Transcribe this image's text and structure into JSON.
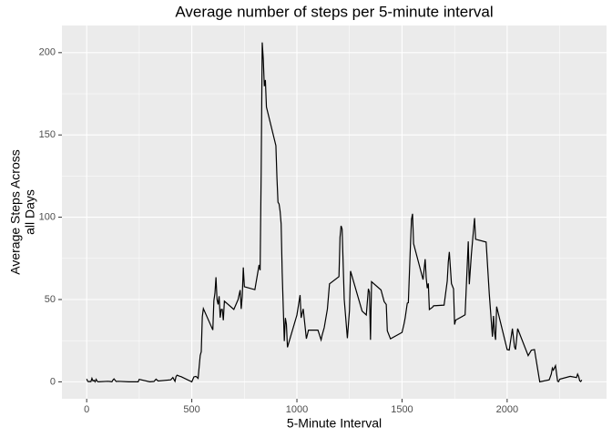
{
  "chart_data": {
    "type": "line",
    "title": "Average number of steps per 5-minute interval",
    "x_label": "5-Minute Interval",
    "y_label": [
      "Average Steps Across",
      "all Days"
    ],
    "color": "#000000",
    "grid": true,
    "xlim": [
      -117.75,
      2472.75
    ],
    "xticks": [
      0,
      500,
      1000,
      1500,
      2000
    ],
    "x_minor_grid": [
      250,
      750,
      1250,
      1750,
      2250
    ],
    "ylim": [
      -10.3,
      216.5
    ],
    "yticks": [
      0,
      50,
      100,
      150,
      200
    ],
    "y_minor_grid": [
      25,
      75,
      125,
      175
    ],
    "x": [
      0,
      5,
      10,
      15,
      20,
      25,
      30,
      35,
      40,
      45,
      50,
      55,
      100,
      110,
      120,
      125,
      130,
      140,
      150,
      200,
      215,
      230,
      245,
      250,
      300,
      320,
      330,
      340,
      400,
      410,
      420,
      425,
      430,
      440,
      450,
      500,
      510,
      520,
      530,
      540,
      545,
      550,
      555,
      600,
      605,
      610,
      615,
      620,
      625,
      630,
      635,
      640,
      645,
      650,
      655,
      700,
      720,
      730,
      735,
      740,
      745,
      750,
      800,
      820,
      825,
      830,
      835,
      840,
      845,
      850,
      855,
      900,
      905,
      910,
      915,
      920,
      925,
      930,
      935,
      940,
      945,
      950,
      955,
      1000,
      1015,
      1020,
      1030,
      1045,
      1055,
      1100,
      1115,
      1120,
      1130,
      1145,
      1155,
      1200,
      1205,
      1210,
      1215,
      1225,
      1240,
      1250,
      1255,
      1310,
      1330,
      1340,
      1345,
      1350,
      1355,
      1400,
      1415,
      1425,
      1430,
      1445,
      1500,
      1510,
      1515,
      1525,
      1530,
      1540,
      1545,
      1550,
      1555,
      1600,
      1610,
      1615,
      1620,
      1625,
      1630,
      1645,
      1650,
      1700,
      1715,
      1720,
      1725,
      1735,
      1745,
      1750,
      1755,
      1800,
      1815,
      1820,
      1830,
      1845,
      1850,
      1900,
      1915,
      1930,
      1935,
      1940,
      1945,
      1950,
      2000,
      2010,
      2025,
      2035,
      2040,
      2050,
      2100,
      2115,
      2130,
      2145,
      2155,
      2200,
      2210,
      2215,
      2220,
      2230,
      2240,
      2245,
      2250,
      2300,
      2330,
      2335,
      2340,
      2345,
      2350,
      2355
    ],
    "series": [
      {
        "name": "steps",
        "color": "#000000",
        "values": [
          1.7,
          0.3,
          0.1,
          0.2,
          0.1,
          2.1,
          0.5,
          0.9,
          0,
          1.5,
          0.3,
          0,
          0.3,
          0.2,
          0,
          1.1,
          1.8,
          0.2,
          0.3,
          0,
          0,
          0,
          0,
          1.5,
          0,
          0.2,
          1.6,
          0.5,
          1.2,
          2.6,
          0.3,
          3.2,
          4,
          3.5,
          3.1,
          0,
          3,
          3.3,
          2.1,
          16,
          18.3,
          39.5,
          44.5,
          31.5,
          49.3,
          53.8,
          63.5,
          50,
          47,
          52,
          39,
          44,
          44,
          37.4,
          49,
          44,
          49.9,
          55.7,
          44.3,
          52,
          69.5,
          57.8,
          56,
          71,
          67.8,
          127.5,
          206.2,
          196,
          179.6,
          183.4,
          167,
          143.5,
          124,
          109.1,
          108.1,
          103.7,
          95.9,
          66.2,
          45.2,
          24.8,
          38.8,
          35,
          21,
          40.6,
          52.7,
          38.9,
          44.3,
          26.2,
          31.4,
          31.4,
          25.5,
          28.4,
          33,
          44.2,
          59.5,
          63.9,
          87.7,
          94.8,
          92.8,
          50.2,
          26.5,
          43.4,
          67.3,
          43,
          40.6,
          56.5,
          54.5,
          25.5,
          60.8,
          55.8,
          48.7,
          47,
          31,
          26.1,
          30,
          35.5,
          38.9,
          47.8,
          48.1,
          82.9,
          98.7,
          102.1,
          83.9,
          62.1,
          74.5,
          63.2,
          56.9,
          59.8,
          43.9,
          45.3,
          46.2,
          46.6,
          61.2,
          72.7,
          78.9,
          59.7,
          56.5,
          34.8,
          37.5,
          40.7,
          85.3,
          59.3,
          77.7,
          99.5,
          86.6,
          84.9,
          53.4,
          27.4,
          40,
          30.2,
          25.5,
          45.7,
          19.6,
          19.3,
          32.3,
          21.3,
          19.6,
          32.3,
          15.9,
          19.2,
          19.6,
          7.8,
          0,
          1.2,
          4.7,
          8.3,
          7.1,
          9.8,
          0.3,
          0.1,
          1.6,
          3.3,
          2.6,
          4.7,
          3.3,
          0.6,
          0.2,
          1.1
        ]
      }
    ]
  }
}
